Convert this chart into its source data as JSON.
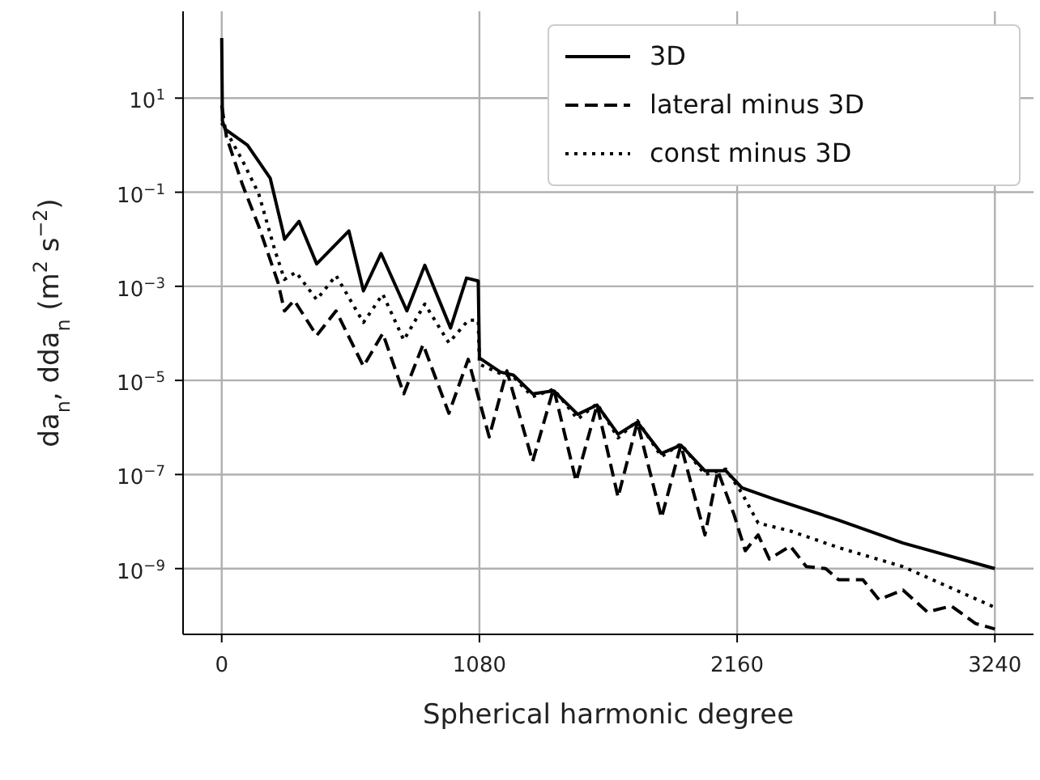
{
  "chart_data": {
    "type": "line",
    "xlabel": "Spherical harmonic degree",
    "ylabel": "da$_{n}$, dda$_{n}$ (m$^{2}$ s$^{−2}$)",
    "log": "y",
    "grid": true,
    "legend": "top right",
    "marker": "none",
    "xlim": [
      -162,
      3402
    ],
    "xticks": [
      0,
      1080,
      2160,
      3240
    ],
    "ylim": [
      4e-11,
      700
    ],
    "yticks": [
      {
        "value": 10,
        "label": "10$^{1}$"
      },
      {
        "value": 0.1,
        "label": "10$^{−1}$"
      },
      {
        "value": 0.001,
        "label": "10$^{−3}$"
      },
      {
        "value": 1e-05,
        "label": "10$^{−5}$"
      },
      {
        "value": 1e-07,
        "label": "10$^{−7}$"
      },
      {
        "value": 1e-09,
        "label": "10$^{−9}$"
      }
    ],
    "series": [
      {
        "name": "3D",
        "color": "#000000",
        "line_style": "solid",
        "x": [
          0,
          3,
          14,
          108,
          203,
          256,
          263,
          324,
          398,
          533,
          594,
          668,
          776,
          851,
          959,
          1026,
          1075,
          1080,
          1168,
          1222,
          1303,
          1391,
          1492,
          1573,
          1661,
          1742,
          1843,
          1924,
          2025,
          2113,
          2180,
          2315,
          2585,
          2855,
          3240
        ],
        "values": [
          190,
          3.3,
          2.2,
          1.0,
          0.2,
          0.015,
          0.01,
          0.024,
          0.003,
          0.015,
          0.0008,
          0.005,
          0.0003,
          0.0028,
          0.00013,
          0.0015,
          0.0013,
          3e-05,
          1.5e-05,
          1.3e-05,
          5.2e-06,
          6e-06,
          1.9e-06,
          3e-06,
          7.2e-07,
          1.3e-06,
          2.8e-07,
          4.2e-07,
          1.2e-07,
          1.2e-07,
          5.2e-08,
          3e-08,
          1.07e-08,
          3.5e-09,
          1e-09
        ]
      },
      {
        "name": "lateral minus 3D",
        "color": "#000000",
        "line_style": "dashed",
        "x": [
          0,
          20,
          88,
          155,
          236,
          263,
          304,
          398,
          479,
          594,
          675,
          763,
          844,
          952,
          1033,
          1121,
          1195,
          1303,
          1391,
          1485,
          1573,
          1661,
          1742,
          1843,
          1924,
          2025,
          2079,
          2147,
          2194,
          2248,
          2295,
          2383,
          2450,
          2531,
          2585,
          2687,
          2754,
          2855,
          2957,
          3058,
          3159,
          3240
        ],
        "values": [
          7,
          1.5,
          0.14,
          0.019,
          0.0012,
          0.0003,
          0.0005,
          9e-05,
          0.0003,
          2e-05,
          0.0001,
          5.2e-06,
          5.8e-05,
          2e-06,
          2.8e-05,
          6.3e-07,
          1.6e-05,
          1.9e-07,
          6.8e-06,
          7.2e-08,
          3e-06,
          3.3e-08,
          1.3e-06,
          1.2e-08,
          4.2e-07,
          5.2e-09,
          1.2e-07,
          1.4e-08,
          2.4e-09,
          5.2e-09,
          1.6e-09,
          3e-09,
          1.1e-09,
          1e-09,
          5.8e-10,
          5.8e-10,
          2.2e-10,
          3.5e-10,
          1.2e-10,
          1.6e-10,
          6.8e-11,
          5.2e-11
        ]
      },
      {
        "name": "const minus 3D",
        "color": "#000000",
        "line_style": "dotted",
        "x": [
          0,
          88,
          155,
          223,
          263,
          311,
          398,
          479,
          594,
          675,
          763,
          851,
          952,
          1033,
          1075,
          1080,
          1168,
          1222,
          1303,
          1391,
          1492,
          1573,
          1661,
          1742,
          1843,
          1924,
          2025,
          2113,
          2180,
          2248,
          2383,
          2585,
          2855,
          3240
        ],
        "values": [
          3,
          0.46,
          0.093,
          0.0058,
          0.0014,
          0.002,
          0.00052,
          0.0017,
          0.00017,
          0.00068,
          7.2e-05,
          0.00042,
          6.3e-05,
          0.00019,
          0.00019,
          2.2e-05,
          1.4e-05,
          1.2e-05,
          4.5e-06,
          6.5e-06,
          1.5e-06,
          3.2e-06,
          6e-07,
          1.4e-06,
          2.4e-07,
          4.5e-07,
          1e-07,
          1.3e-07,
          4e-08,
          9.3e-09,
          6.3e-09,
          2.8e-09,
          1.1e-09,
          1.5e-10
        ]
      }
    ]
  }
}
